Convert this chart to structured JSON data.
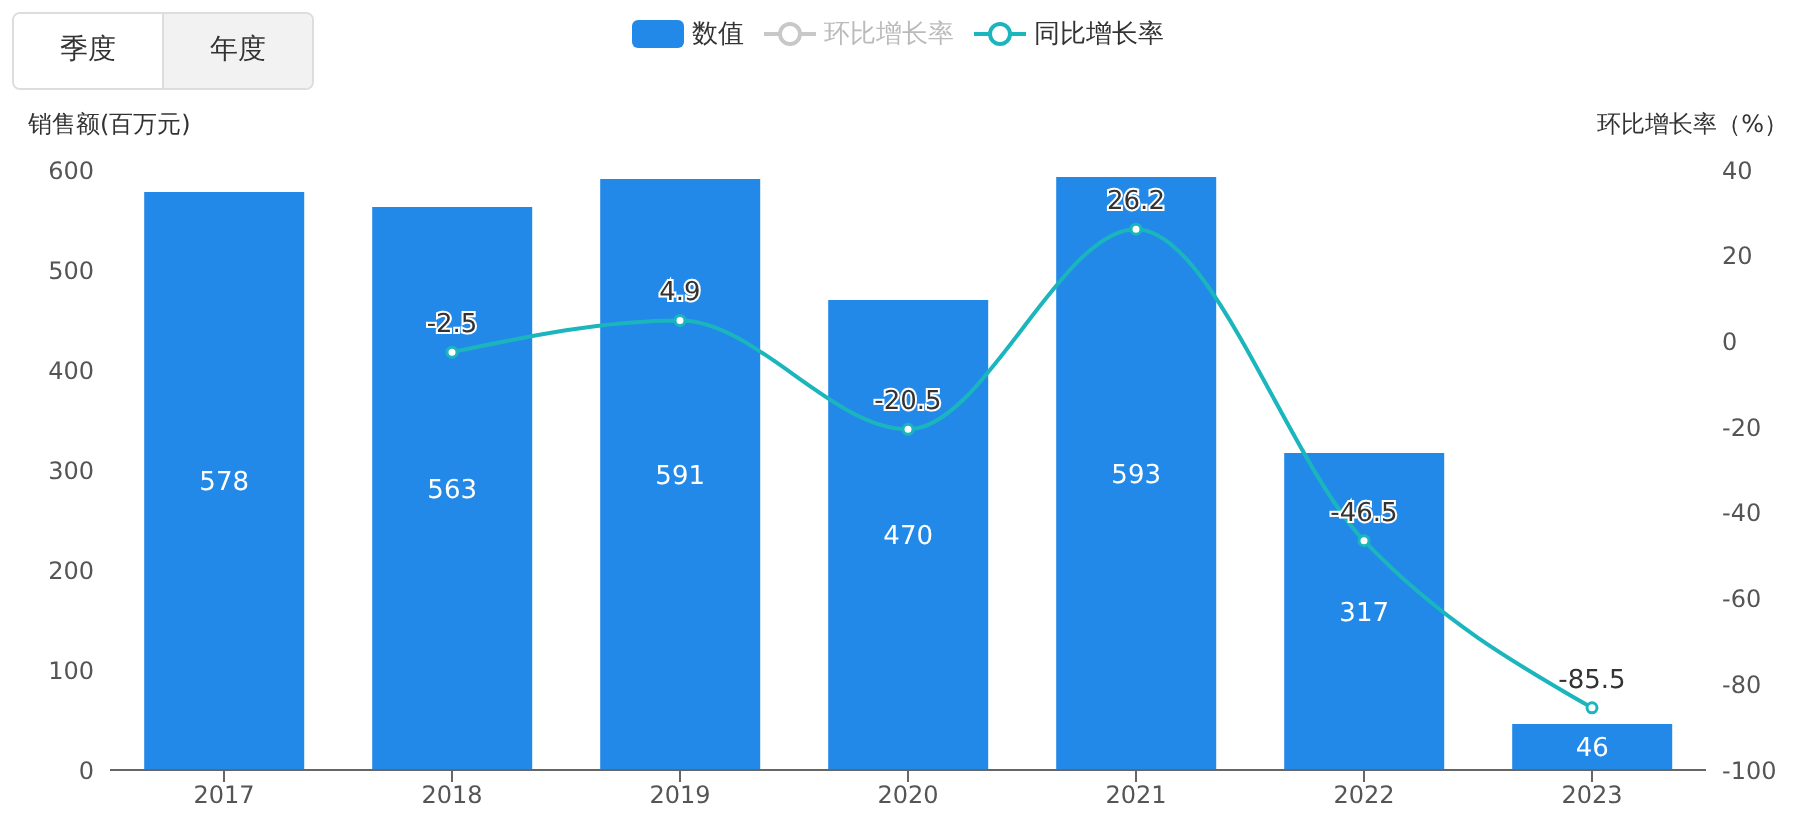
{
  "chart_data": {
    "type": "bar",
    "categories": [
      "2017",
      "2018",
      "2019",
      "2020",
      "2021",
      "2022",
      "2023"
    ],
    "ylabel": "销售额(百万元)",
    "y2label": "环比增长率（%）",
    "ylim": [
      0,
      600
    ],
    "yticks": [
      0,
      100,
      200,
      300,
      400,
      500,
      600
    ],
    "y2lim": [
      -100,
      40
    ],
    "y2ticks": [
      -100,
      -80,
      -60,
      -40,
      -20,
      0,
      20,
      40
    ],
    "series": [
      {
        "name": "数值",
        "color": "#2389e8",
        "values": [
          578,
          563,
          591,
          470,
          593,
          317,
          46
        ]
      },
      {
        "name": "环比增长率",
        "type": "line",
        "axis": "y2",
        "color": "#c8c8c8",
        "values": [
          null,
          null,
          null,
          null,
          null,
          null,
          null
        ]
      },
      {
        "name": "同比增长率",
        "type": "line",
        "axis": "y2",
        "color": "#1ab5bd",
        "values": [
          null,
          -2.5,
          4.9,
          -20.5,
          26.2,
          -46.5,
          -85.5
        ]
      }
    ],
    "data_labels": true,
    "legend": "top",
    "marker": "circle",
    "line_style": "solid",
    "annotations": [
      "季度",
      "年度"
    ]
  }
}
